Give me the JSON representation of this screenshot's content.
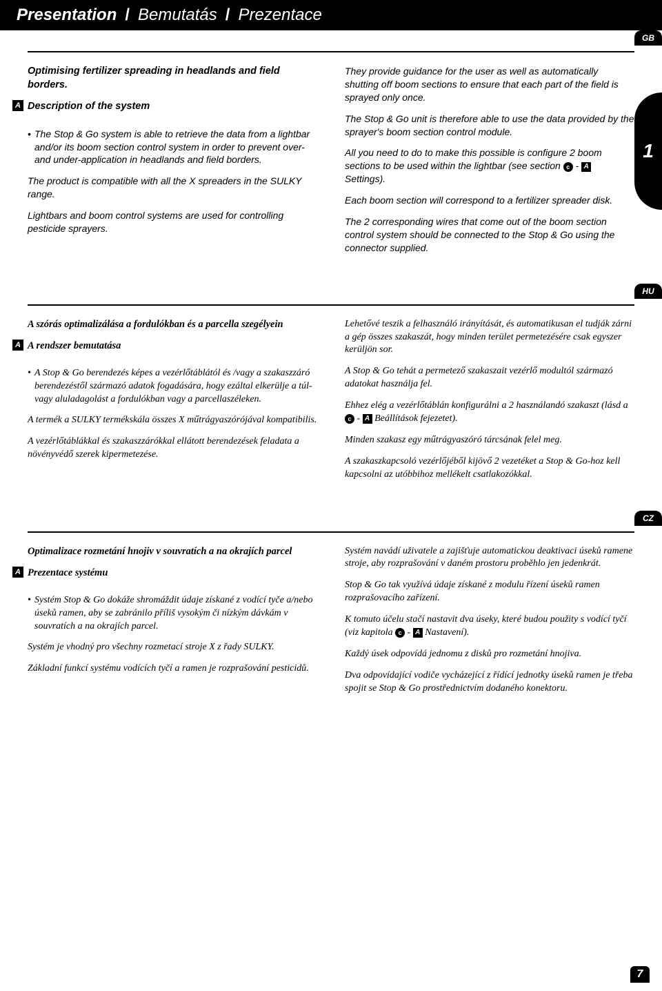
{
  "header": {
    "part1": "Presentation",
    "sep": "/",
    "part2": "Bemutatás",
    "part3": "Prezentace"
  },
  "side_tab": "1",
  "page_number": "7",
  "badges": {
    "gb": "GB",
    "hu": "HU",
    "cz": "CZ",
    "a": "A",
    "c": "c"
  },
  "gb": {
    "title": "Optimising fertilizer spreading in headlands and field borders.",
    "subtitle": "Description of the system",
    "left": {
      "p1": "The Stop & Go system is able to retrieve the data from a lightbar and/or its boom section control system in order to prevent over- and under-application in headlands and field borders.",
      "p2": "The product is compatible with all the X spreaders in the SULKY range.",
      "p3": "Lightbars and boom control systems are used for controlling pesticide sprayers."
    },
    "right": {
      "p1": "They provide guidance for the user as well as automatically shutting off boom sections to ensure that each part of the field is sprayed only once.",
      "p2": "The Stop & Go unit is therefore able to use the data provided by the sprayer's boom section control module.",
      "p3a": "All you need to do to make this possible is configure 2 boom sections to be used within the lightbar (see section ",
      "p3b": " - ",
      "p3c": " Settings).",
      "p4": "Each boom section will correspond to a fertilizer spreader disk.",
      "p5": "The 2 corresponding wires that come out of the boom section control system should be connected to the Stop & Go using the connector supplied."
    }
  },
  "hu": {
    "title": "A szórás optimalizálása a fordulókban és a parcella szegélyein",
    "subtitle": "A rendszer bemutatása",
    "left": {
      "p1": "A Stop & Go berendezés képes a vezérlőtáblától és /vagy a szakaszzáró berendezéstől származó adatok fogadására, hogy ezáltal elkerülje a túl- vagy aluladagolást a fordulókban vagy a parcellaszéleken.",
      "p2": "A termék a SULKY termékskála összes X műtrágyaszórójával kompatibilis.",
      "p3": "A vezérlőtáblákkal és szakaszzárókkal ellátott berendezések feladata a növényvédő szerek kipermetezése."
    },
    "right": {
      "p1": "Lehetővé teszik a felhasználó irányítását, és automatikusan el tudják zárni a gép összes szakaszát, hogy minden terület permetezésére csak egyszer kerüljön sor.",
      "p2": "A Stop & Go tehát a permetező szakaszait vezérlő modultól származó adatokat használja fel.",
      "p3a": "Ehhez elég a vezérlőtáblán konfigurálni a 2 használandó szakaszt (lásd a ",
      "p3b": " - ",
      "p3c": " Beállítások fejezetet).",
      "p4": "Minden szakasz egy műtrágyaszóró tárcsának felel meg.",
      "p5": "A szakaszkapcsoló vezérlőjéből kijövő 2 vezetéket a Stop & Go-hoz kell kapcsolni az utóbbihoz mellékelt csatlakozókkal."
    }
  },
  "cz": {
    "title": "Optimalizace rozmetání hnojiv v souvratích a na okrajích parcel",
    "subtitle": "Prezentace systému",
    "left": {
      "p1": "Systém Stop & Go dokáže shromáždit údaje získané z vodící tyče a/nebo úseků ramen, aby se zabránilo příliš vysokým či nízkým dávkám v souvratích a na okrajích parcel.",
      "p2": "Systém je vhodný pro všechny rozmetací stroje X z řady SULKY.",
      "p3": "Základní funkcí systému vodících tyčí a ramen je rozprašování pesticidů."
    },
    "right": {
      "p1": "Systém navádí uživatele a zajišťuje automatickou deaktivaci úseků ramene stroje, aby rozprašování v daném prostoru proběhlo jen jedenkrát.",
      "p2": "Stop & Go tak využívá údaje získané z modulu řízení úseků ramen rozprašovacího zařízení.",
      "p3a": "K tomuto účelu stačí nastavit dva úseky, které budou použity s vodící tyčí (viz kapitola ",
      "p3b": " - ",
      "p3c": " Nastavení).",
      "p4": "Každý úsek odpovídá jednomu z disků pro rozmetání hnojiva.",
      "p5": "Dva odpovídající vodiče vycházející z řídící jednotky úseků ramen je třeba spojit se Stop & Go prostřednictvím dodaného konektoru."
    }
  }
}
